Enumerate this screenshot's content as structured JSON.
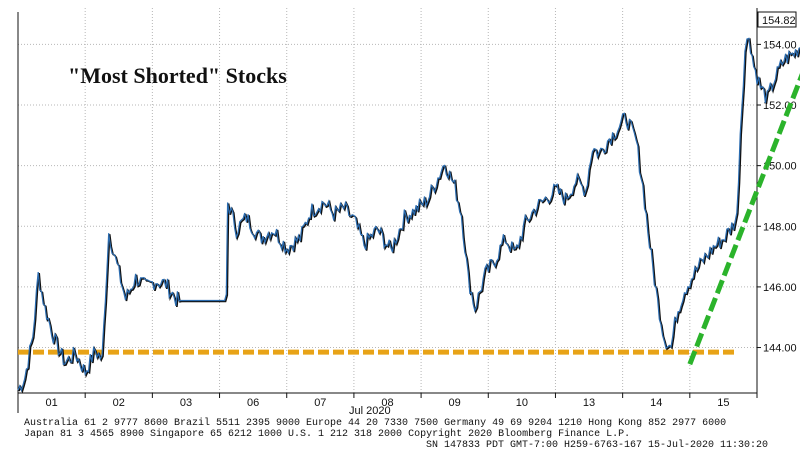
{
  "chart_data": {
    "type": "line",
    "title": "\"Most Shorted\" Stocks",
    "xlabel": "Jul 2020",
    "ylabel": "",
    "categories": [
      "01",
      "02",
      "03",
      "06",
      "07",
      "08",
      "09",
      "10",
      "13",
      "14",
      "15"
    ],
    "ylim": [
      142.5,
      155.2
    ],
    "yticks": [
      "144.00",
      "146.00",
      "148.00",
      "150.00",
      "152.00",
      "154.00"
    ],
    "last_value_label": "154.82",
    "grid": true,
    "series": [
      {
        "values": [
          [
            0.0,
            142.6
          ],
          [
            0.1,
            143.0
          ],
          [
            0.22,
            144.4
          ],
          [
            0.3,
            146.4
          ],
          [
            0.4,
            145.3
          ],
          [
            0.55,
            144.2
          ],
          [
            0.7,
            143.5
          ],
          [
            0.85,
            143.8
          ],
          [
            1.0,
            143.2
          ],
          [
            1.15,
            143.9
          ],
          [
            1.25,
            143.6
          ],
          [
            1.35,
            147.8
          ],
          [
            1.45,
            146.9
          ],
          [
            1.6,
            145.6
          ],
          [
            1.75,
            146.3
          ],
          [
            1.9,
            146.0
          ],
          [
            2.05,
            146.2
          ],
          [
            2.2,
            146.1
          ],
          [
            2.35,
            145.6
          ],
          [
            2.42,
            145.55
          ],
          [
            3.1,
            145.55
          ],
          [
            3.12,
            148.8
          ],
          [
            3.25,
            147.9
          ],
          [
            3.4,
            148.3
          ],
          [
            3.6,
            147.6
          ],
          [
            3.8,
            147.9
          ],
          [
            4.0,
            147.3
          ],
          [
            4.2,
            147.6
          ],
          [
            4.35,
            148.5
          ],
          [
            4.55,
            148.8
          ],
          [
            4.7,
            148.4
          ],
          [
            4.85,
            148.6
          ],
          [
            5.0,
            148.2
          ],
          [
            5.15,
            147.4
          ],
          [
            5.35,
            147.9
          ],
          [
            5.55,
            147.2
          ],
          [
            5.75,
            148.3
          ],
          [
            5.95,
            148.6
          ],
          [
            6.1,
            148.9
          ],
          [
            6.25,
            149.6
          ],
          [
            6.35,
            150.1
          ],
          [
            6.5,
            149.3
          ],
          [
            6.6,
            148.4
          ],
          [
            6.7,
            146.3
          ],
          [
            6.8,
            145.3
          ],
          [
            6.95,
            146.4
          ],
          [
            7.1,
            146.9
          ],
          [
            7.25,
            147.6
          ],
          [
            7.4,
            147.1
          ],
          [
            7.55,
            148.1
          ],
          [
            7.7,
            148.6
          ],
          [
            7.85,
            148.9
          ],
          [
            8.0,
            149.2
          ],
          [
            8.15,
            148.9
          ],
          [
            8.3,
            149.5
          ],
          [
            8.45,
            149.2
          ],
          [
            8.55,
            150.6
          ],
          [
            8.65,
            150.4
          ],
          [
            8.8,
            150.9
          ],
          [
            8.95,
            151.3
          ],
          [
            9.05,
            151.6
          ],
          [
            9.2,
            150.8
          ],
          [
            9.3,
            149.3
          ],
          [
            9.4,
            147.4
          ],
          [
            9.52,
            145.5
          ],
          [
            9.62,
            144.3
          ],
          [
            9.72,
            144.0
          ],
          [
            9.8,
            145.1
          ],
          [
            9.92,
            145.9
          ],
          [
            10.05,
            146.4
          ],
          [
            10.2,
            146.9
          ],
          [
            10.35,
            147.3
          ],
          [
            10.5,
            147.6
          ],
          [
            10.6,
            147.9
          ],
          [
            10.7,
            148.3
          ],
          [
            10.75,
            151.1
          ],
          [
            10.82,
            153.8
          ],
          [
            10.88,
            154.3
          ],
          [
            10.95,
            153.3
          ],
          [
            11.05,
            152.6
          ],
          [
            11.15,
            152.2
          ],
          [
            11.25,
            152.8
          ],
          [
            11.4,
            153.5
          ],
          [
            11.55,
            153.7
          ],
          [
            11.7,
            154.1
          ],
          [
            11.85,
            154.6
          ],
          [
            11.95,
            154.82
          ]
        ]
      }
    ],
    "annotations": {
      "support_level": 143.85,
      "trend_arrow_from": [
        10.0,
        143.45
      ],
      "trend_arrow_to": [
        11.95,
        154.6
      ]
    }
  },
  "footer": {
    "line1": "Australia 61 2 9777 8600 Brazil 5511 2395 9000 Europe 44 20 7330 7500 Germany 49 69 9204 1210 Hong Kong 852 2977 6000",
    "line2": "Japan 81 3 4565 8900        Singapore 65 6212 1000        U.S. 1 212 318 2000        Copyright 2020 Bloomberg Finance L.P.",
    "line3": "SN 147833 PDT  GMT-7:00 H259-6763-167 15-Jul-2020 11:30:20"
  },
  "colors": {
    "price_line": "#2b6cb0",
    "price_shadow": "#111111",
    "support_line": "#e8a317",
    "trend_arrow": "#2bb32b",
    "grid": "#b7b7b7"
  }
}
